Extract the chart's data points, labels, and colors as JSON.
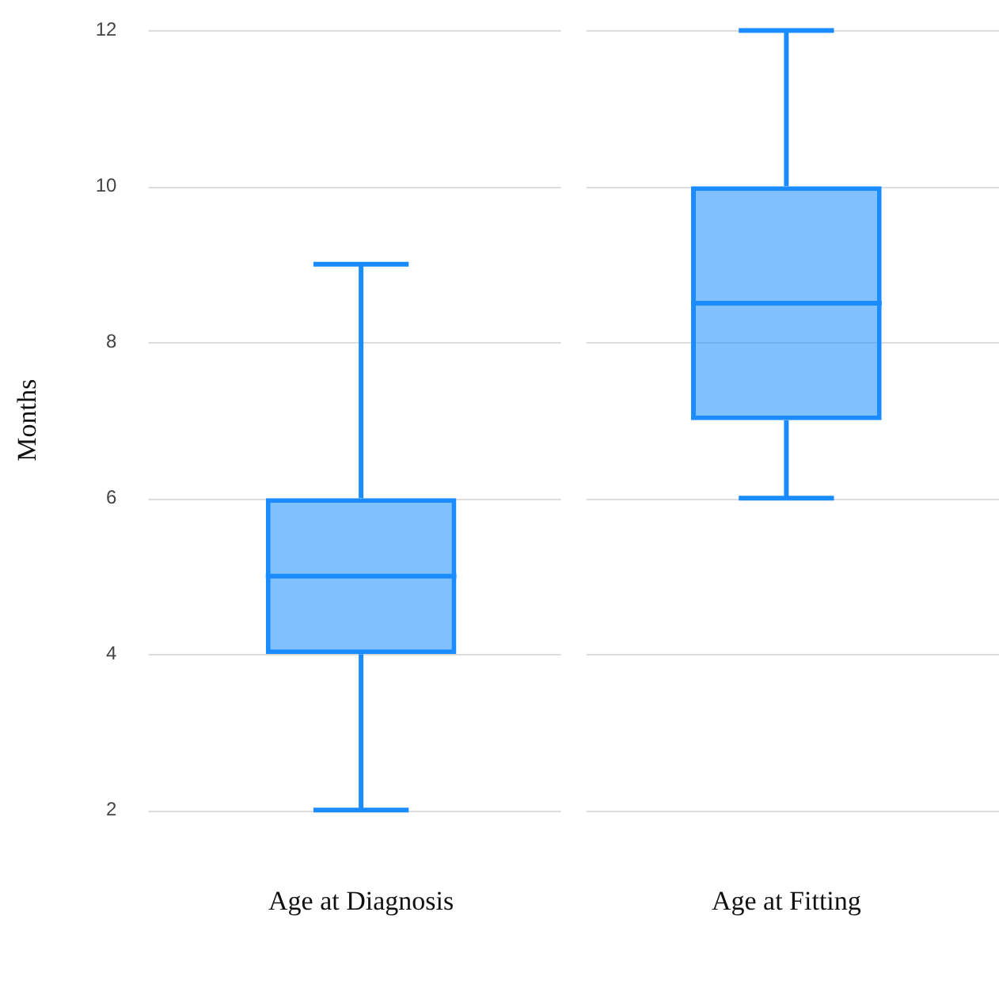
{
  "chart_data": {
    "type": "box",
    "ylabel": "Months",
    "categories": [
      "Age at Diagnosis",
      "Age at Fitting"
    ],
    "boxes": [
      {
        "low": 2,
        "q1": 4,
        "median": 5,
        "q3": 6,
        "high": 9
      },
      {
        "low": 6,
        "q1": 7,
        "median": 8.5,
        "q3": 10,
        "high": 12
      }
    ],
    "color": "#1a8cff",
    "ylim": [
      2,
      12
    ],
    "yticks": [
      2,
      4,
      6,
      8,
      10,
      12
    ],
    "grid": "y"
  }
}
